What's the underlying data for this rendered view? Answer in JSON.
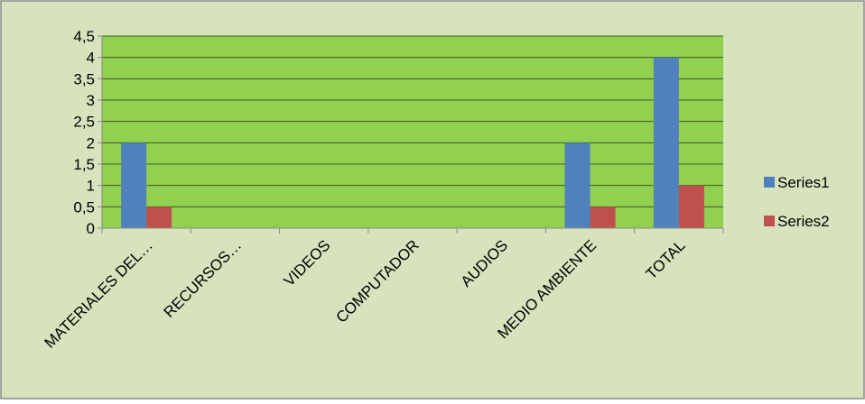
{
  "colors": {
    "chart_area": "#d6e3bc",
    "plot_area": "#92d050",
    "series1": "#4f81bd",
    "series2": "#c0504d",
    "grid": "#3c5a1e",
    "axis": "#8a8a8a",
    "text": "#000000"
  },
  "chart_data": {
    "type": "bar",
    "categories": [
      "MATERIALES DEL…",
      "RECURSOS…",
      "VIDEOS",
      "COMPUTADOR",
      "AUDIOS",
      "MEDIO AMBIENTE",
      "TOTAL"
    ],
    "series": [
      {
        "name": "Series1",
        "values": [
          2,
          0,
          0,
          0,
          0,
          2,
          4
        ]
      },
      {
        "name": "Series2",
        "values": [
          0.5,
          0,
          0,
          0,
          0,
          0.5,
          1
        ]
      }
    ],
    "ylim": [
      0,
      4.5
    ],
    "y_ticks": [
      "0",
      "0,5",
      "1",
      "1,5",
      "2",
      "2,5",
      "3",
      "3,5",
      "4",
      "4,5"
    ],
    "grid": true,
    "legend_position": "right"
  }
}
